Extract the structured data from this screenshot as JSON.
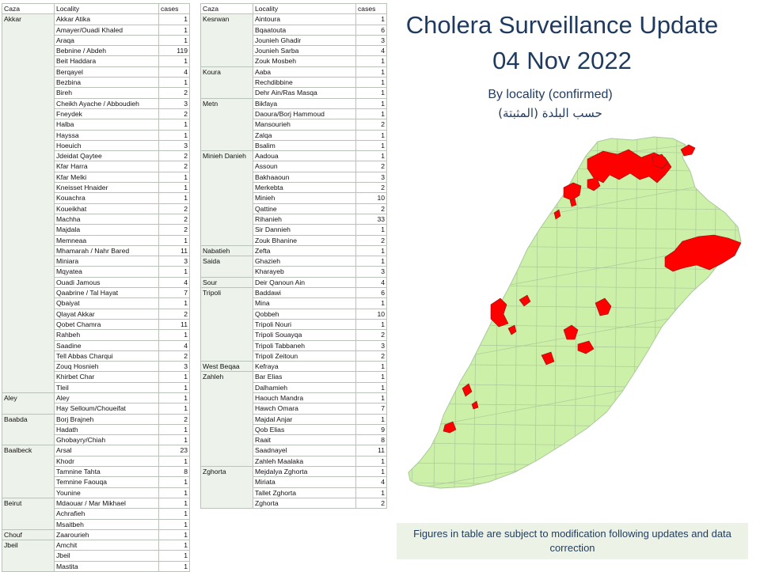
{
  "title": "Cholera Surveillance Update",
  "date": "04 Nov 2022",
  "subtitle": "By locality (confirmed)",
  "subtitle_ar": "حسب البلدة (المثبتة)",
  "footnote": "Figures in table are subject to modification following updates and data correction",
  "colors": {
    "map_land": "#ccf0a8",
    "map_border": "#a9c99a",
    "affected": "#ff0000",
    "title": "#1f3a5f"
  },
  "table_headers": {
    "caza": "Caza",
    "locality": "Locality",
    "cases": "cases"
  },
  "table_left": [
    {
      "caza": "Akkar",
      "rows": [
        {
          "locality": "Akkar Atika",
          "cases": "1"
        },
        {
          "locality": "Amayer/Ouadi Khaled",
          "cases": "1"
        },
        {
          "locality": "Araqa",
          "cases": "1"
        },
        {
          "locality": "Bebnine / Abdeh",
          "cases": "119"
        },
        {
          "locality": "Beit Haddara",
          "cases": "1"
        },
        {
          "locality": "Berqayel",
          "cases": "4"
        },
        {
          "locality": "Bezbina",
          "cases": "1"
        },
        {
          "locality": "Bireh",
          "cases": "2"
        },
        {
          "locality": "Cheikh Ayache / Abboudieh",
          "cases": "3"
        },
        {
          "locality": "Fneydek",
          "cases": "2"
        },
        {
          "locality": "Halba",
          "cases": "1"
        },
        {
          "locality": "Hayssa",
          "cases": "1"
        },
        {
          "locality": "Hoeuich",
          "cases": "3"
        },
        {
          "locality": "Jdeidat Qaytee",
          "cases": "2"
        },
        {
          "locality": "Kfar Harra",
          "cases": "2"
        },
        {
          "locality": "Kfar Melki",
          "cases": "1"
        },
        {
          "locality": "Kneisset Hnaider",
          "cases": "1"
        },
        {
          "locality": "Kouachra",
          "cases": "1"
        },
        {
          "locality": "Koueikhat",
          "cases": "2"
        },
        {
          "locality": "Machha",
          "cases": "2"
        },
        {
          "locality": "Majdala",
          "cases": "2"
        },
        {
          "locality": "Memneaa",
          "cases": "1"
        },
        {
          "locality": "Mhamarah / Nahr Bared",
          "cases": "11"
        },
        {
          "locality": "Miniara",
          "cases": "3"
        },
        {
          "locality": "Mqyatea",
          "cases": "1"
        },
        {
          "locality": "Ouadi Jamous",
          "cases": "4"
        },
        {
          "locality": "Qaabrine / Tal Hayat",
          "cases": "7"
        },
        {
          "locality": "Qbaiyat",
          "cases": "1"
        },
        {
          "locality": "Qlayat Akkar",
          "cases": "2"
        },
        {
          "locality": "Qobet Chamra",
          "cases": "11"
        },
        {
          "locality": "Rahbeh",
          "cases": "1"
        },
        {
          "locality": "Saadine",
          "cases": "4"
        },
        {
          "locality": "Tell Abbas Charqui",
          "cases": "2"
        },
        {
          "locality": "Zouq Hosnieh",
          "cases": "3"
        },
        {
          "locality": "Khirbet Char",
          "cases": "1"
        },
        {
          "locality": "Tleil",
          "cases": "1"
        }
      ]
    },
    {
      "caza": "Aley",
      "rows": [
        {
          "locality": "Aley",
          "cases": "1"
        },
        {
          "locality": "Hay Selloum/Choueifat",
          "cases": "1"
        }
      ]
    },
    {
      "caza": "Baabda",
      "rows": [
        {
          "locality": "Borj Brajneh",
          "cases": "2"
        },
        {
          "locality": "Hadath",
          "cases": "1"
        },
        {
          "locality": "Ghobayry/Chiah",
          "cases": "1"
        }
      ]
    },
    {
      "caza": "Baalbeck",
      "rows": [
        {
          "locality": "Arsal",
          "cases": "23"
        },
        {
          "locality": "Khodr",
          "cases": "1"
        },
        {
          "locality": "Tamnine Tahta",
          "cases": "8"
        },
        {
          "locality": "Temnine Faouqa",
          "cases": "1"
        },
        {
          "locality": "Younine",
          "cases": "1"
        }
      ]
    },
    {
      "caza": "Beirut",
      "rows": [
        {
          "locality": "Mdaouar / Mar Mikhael",
          "cases": "1"
        },
        {
          "locality": "Achrafieh",
          "cases": "1"
        },
        {
          "locality": "Msaitbeh",
          "cases": "1"
        }
      ]
    },
    {
      "caza": "Chouf",
      "rows": [
        {
          "locality": "Zaarourieh",
          "cases": "1"
        }
      ]
    },
    {
      "caza": "Jbeil",
      "rows": [
        {
          "locality": "Amchit",
          "cases": "1"
        },
        {
          "locality": "Jbeil",
          "cases": "1"
        },
        {
          "locality": "Mastita",
          "cases": "1"
        }
      ]
    }
  ],
  "table_right": [
    {
      "caza": "Kesrwan",
      "rows": [
        {
          "locality": "Aintoura",
          "cases": "1"
        },
        {
          "locality": "Bqaatouta",
          "cases": "6"
        },
        {
          "locality": "Jounieh Ghadir",
          "cases": "3"
        },
        {
          "locality": "Jounieh Sarba",
          "cases": "4"
        },
        {
          "locality": "Zouk Mosbeh",
          "cases": "1"
        }
      ]
    },
    {
      "caza": "Koura",
      "rows": [
        {
          "locality": "Aaba",
          "cases": "1"
        },
        {
          "locality": "Rechdibbine",
          "cases": "1"
        },
        {
          "locality": "Dehr Ain/Ras Masqa",
          "cases": "1"
        }
      ]
    },
    {
      "caza": "Metn",
      "rows": [
        {
          "locality": "Bikfaya",
          "cases": "1"
        },
        {
          "locality": "Daoura/Borj Hammoud",
          "cases": "1"
        },
        {
          "locality": "Mansourieh",
          "cases": "2"
        },
        {
          "locality": "Zalqa",
          "cases": "1"
        },
        {
          "locality": "Bsalim",
          "cases": "1"
        }
      ]
    },
    {
      "caza": "Minieh Danieh",
      "rows": [
        {
          "locality": "Aadoua",
          "cases": "1"
        },
        {
          "locality": "Assoun",
          "cases": "2"
        },
        {
          "locality": "Bakhaaoun",
          "cases": "3"
        },
        {
          "locality": "Merkebta",
          "cases": "2"
        },
        {
          "locality": "Minieh",
          "cases": "10"
        },
        {
          "locality": "Qattine",
          "cases": "2"
        },
        {
          "locality": "Rihanieh",
          "cases": "33"
        },
        {
          "locality": "Sir Dannieh",
          "cases": "1"
        },
        {
          "locality": "Zouk Bhanine",
          "cases": "2"
        }
      ]
    },
    {
      "caza": "Nabatieh",
      "rows": [
        {
          "locality": "Zefta",
          "cases": "1"
        }
      ]
    },
    {
      "caza": "Saida",
      "rows": [
        {
          "locality": "Ghazieh",
          "cases": "1"
        },
        {
          "locality": "Kharayeb",
          "cases": "3"
        }
      ]
    },
    {
      "caza": "Sour",
      "rows": [
        {
          "locality": "Deir Qanoun Ain",
          "cases": "4"
        }
      ]
    },
    {
      "caza": "Tripoli",
      "rows": [
        {
          "locality": "Baddawi",
          "cases": "6"
        },
        {
          "locality": "Mina",
          "cases": "1"
        },
        {
          "locality": "Qobbeh",
          "cases": "10"
        },
        {
          "locality": "Tripoli Nouri",
          "cases": "1"
        },
        {
          "locality": "Tripoli Souayqa",
          "cases": "2"
        },
        {
          "locality": "Tripoli Tabbaneh",
          "cases": "3"
        },
        {
          "locality": "Tripoli Zeitoun",
          "cases": "2"
        }
      ]
    },
    {
      "caza": "West Beqaa",
      "rows": [
        {
          "locality": "Kefraya",
          "cases": "1"
        }
      ]
    },
    {
      "caza": "Zahleh",
      "rows": [
        {
          "locality": "Bar Elias",
          "cases": "1"
        },
        {
          "locality": "Dalhamieh",
          "cases": "1"
        },
        {
          "locality": "Haouch Mandra",
          "cases": "1"
        },
        {
          "locality": "Hawch Omara",
          "cases": "7"
        },
        {
          "locality": "Majdal Anjar",
          "cases": "1"
        },
        {
          "locality": "Qob Elias",
          "cases": "9"
        },
        {
          "locality": "Raait",
          "cases": "8"
        },
        {
          "locality": "Saadnayel",
          "cases": "11"
        },
        {
          "locality": "Zahleh Maalaka",
          "cases": "1"
        }
      ]
    },
    {
      "caza": "Zghorta",
      "rows": [
        {
          "locality": "Mejdalya Zghorta",
          "cases": "1"
        },
        {
          "locality": "Miriata",
          "cases": "4"
        },
        {
          "locality": "Tallet Zghorta",
          "cases": "1"
        },
        {
          "locality": "Zghorta",
          "cases": "2"
        }
      ]
    }
  ]
}
